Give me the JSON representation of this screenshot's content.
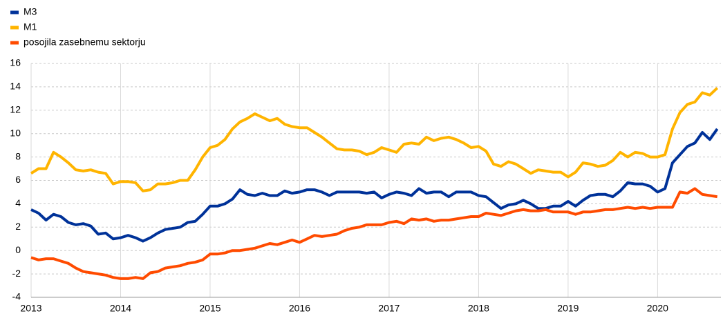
{
  "chart_data": {
    "type": "line",
    "categories": [
      "2013",
      null,
      null,
      null,
      null,
      null,
      null,
      null,
      null,
      null,
      null,
      null,
      "2014",
      null,
      null,
      null,
      null,
      null,
      null,
      null,
      null,
      null,
      null,
      null,
      "2015",
      null,
      null,
      null,
      null,
      null,
      null,
      null,
      null,
      null,
      null,
      null,
      "2016",
      null,
      null,
      null,
      null,
      null,
      null,
      null,
      null,
      null,
      null,
      null,
      "2017",
      null,
      null,
      null,
      null,
      null,
      null,
      null,
      null,
      null,
      null,
      null,
      "2018",
      null,
      null,
      null,
      null,
      null,
      null,
      null,
      null,
      null,
      null,
      null,
      "2019",
      null,
      null,
      null,
      null,
      null,
      null,
      null,
      null,
      null,
      null,
      null,
      "2020",
      null,
      null,
      null,
      null,
      null,
      null,
      null,
      null
    ],
    "series": [
      {
        "name": "M3",
        "color": "#003299",
        "values": [
          3.5,
          3.2,
          2.6,
          3.1,
          2.9,
          2.4,
          2.2,
          2.3,
          2.1,
          1.4,
          1.5,
          1.0,
          1.1,
          1.3,
          1.1,
          0.8,
          1.1,
          1.5,
          1.8,
          1.9,
          2.0,
          2.4,
          2.5,
          3.1,
          3.8,
          3.8,
          4.0,
          4.4,
          5.2,
          4.8,
          4.7,
          4.9,
          4.7,
          4.7,
          5.1,
          4.9,
          5.0,
          5.2,
          5.2,
          5.0,
          4.7,
          5.0,
          5.0,
          5.0,
          5.0,
          4.9,
          5.0,
          4.5,
          4.8,
          5.0,
          4.9,
          4.7,
          5.3,
          4.9,
          5.0,
          5.0,
          4.6,
          5.0,
          5.0,
          5.0,
          4.7,
          4.6,
          4.1,
          3.6,
          3.9,
          4.0,
          4.3,
          4.0,
          3.6,
          3.6,
          3.8,
          3.8,
          4.2,
          3.8,
          4.3,
          4.7,
          4.8,
          4.8,
          4.6,
          5.1,
          5.8,
          5.7,
          5.7,
          5.5,
          5.0,
          5.3,
          7.5,
          8.2,
          8.9,
          9.2,
          10.1,
          9.5,
          10.4
        ]
      },
      {
        "name": "M1",
        "color": "#ffb400",
        "values": [
          6.6,
          7.0,
          7.0,
          8.4,
          8.0,
          7.5,
          6.9,
          6.8,
          6.9,
          6.7,
          6.6,
          5.7,
          5.9,
          5.9,
          5.8,
          5.1,
          5.2,
          5.7,
          5.7,
          5.8,
          6.0,
          6.0,
          6.9,
          8.0,
          8.8,
          9.0,
          9.5,
          10.4,
          11.0,
          11.3,
          11.7,
          11.4,
          11.1,
          11.3,
          10.8,
          10.6,
          10.5,
          10.5,
          10.1,
          9.7,
          9.2,
          8.7,
          8.6,
          8.6,
          8.5,
          8.2,
          8.4,
          8.8,
          8.6,
          8.4,
          9.1,
          9.2,
          9.1,
          9.7,
          9.4,
          9.6,
          9.7,
          9.5,
          9.2,
          8.8,
          8.9,
          8.5,
          7.4,
          7.2,
          7.6,
          7.4,
          7.0,
          6.6,
          6.9,
          6.8,
          6.7,
          6.7,
          6.3,
          6.7,
          7.5,
          7.4,
          7.2,
          7.3,
          7.7,
          8.4,
          8.0,
          8.4,
          8.3,
          8.0,
          8.0,
          8.2,
          10.4,
          11.8,
          12.5,
          12.7,
          13.5,
          13.3,
          13.9
        ]
      },
      {
        "name": "posojila zasebnemu sektorju",
        "color": "#ff4b00",
        "values": [
          -0.6,
          -0.8,
          -0.7,
          -0.7,
          -0.9,
          -1.1,
          -1.5,
          -1.8,
          -1.9,
          -2.0,
          -2.1,
          -2.3,
          -2.4,
          -2.4,
          -2.3,
          -2.4,
          -1.9,
          -1.8,
          -1.5,
          -1.4,
          -1.3,
          -1.1,
          -1.0,
          -0.8,
          -0.3,
          -0.3,
          -0.2,
          0.0,
          0.0,
          0.1,
          0.2,
          0.4,
          0.6,
          0.5,
          0.7,
          0.9,
          0.7,
          1.0,
          1.3,
          1.2,
          1.3,
          1.4,
          1.7,
          1.9,
          2.0,
          2.2,
          2.2,
          2.2,
          2.4,
          2.5,
          2.3,
          2.7,
          2.6,
          2.7,
          2.5,
          2.6,
          2.6,
          2.7,
          2.8,
          2.9,
          2.9,
          3.2,
          3.1,
          3.0,
          3.2,
          3.4,
          3.5,
          3.4,
          3.4,
          3.5,
          3.3,
          3.3,
          3.3,
          3.1,
          3.3,
          3.3,
          3.4,
          3.5,
          3.5,
          3.6,
          3.7,
          3.6,
          3.7,
          3.6,
          3.7,
          3.7,
          3.7,
          5.0,
          4.9,
          5.3,
          4.8,
          4.7,
          4.6
        ]
      }
    ],
    "ylim": [
      -4,
      16
    ],
    "yticks": [
      -4,
      -2,
      0,
      2,
      4,
      6,
      8,
      10,
      12,
      14,
      16
    ],
    "grid": true,
    "legend": "top-left"
  }
}
